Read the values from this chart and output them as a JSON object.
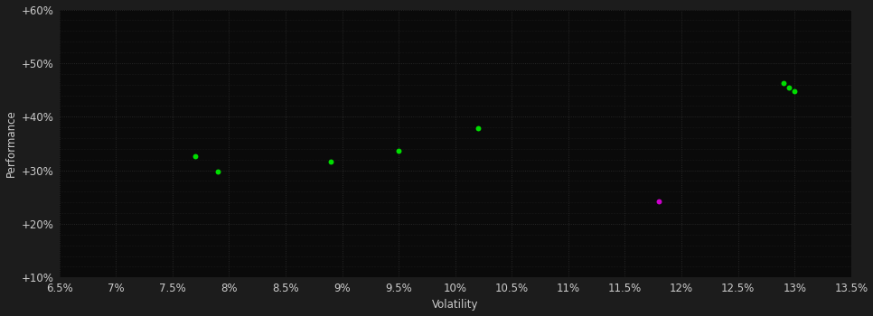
{
  "outer_bg": "#1c1c1c",
  "plot_bg": "#0a0a0a",
  "grid_color": "#2a2a2a",
  "text_color": "#cccccc",
  "xlabel": "Volatility",
  "ylabel": "Performance",
  "xlim": [
    0.065,
    0.135
  ],
  "ylim": [
    0.1,
    0.6
  ],
  "xticks_major": [
    0.065,
    0.07,
    0.075,
    0.08,
    0.085,
    0.09,
    0.095,
    0.1,
    0.105,
    0.11,
    0.115,
    0.12,
    0.125,
    0.13,
    0.135
  ],
  "yticks_major": [
    0.1,
    0.2,
    0.3,
    0.4,
    0.5,
    0.6
  ],
  "yticks_minor": [
    0.1,
    0.12,
    0.14,
    0.16,
    0.18,
    0.2,
    0.22,
    0.24,
    0.26,
    0.28,
    0.3,
    0.32,
    0.34,
    0.36,
    0.38,
    0.4,
    0.42,
    0.44,
    0.46,
    0.48,
    0.5,
    0.52,
    0.54,
    0.56,
    0.58,
    0.6
  ],
  "green_points": [
    [
      0.077,
      0.326
    ],
    [
      0.079,
      0.298
    ],
    [
      0.089,
      0.316
    ],
    [
      0.095,
      0.337
    ],
    [
      0.102,
      0.378
    ],
    [
      0.129,
      0.462
    ],
    [
      0.1295,
      0.454
    ],
    [
      0.13,
      0.448
    ]
  ],
  "magenta_points": [
    [
      0.118,
      0.242
    ]
  ],
  "point_size": 18,
  "font_size": 8.5
}
